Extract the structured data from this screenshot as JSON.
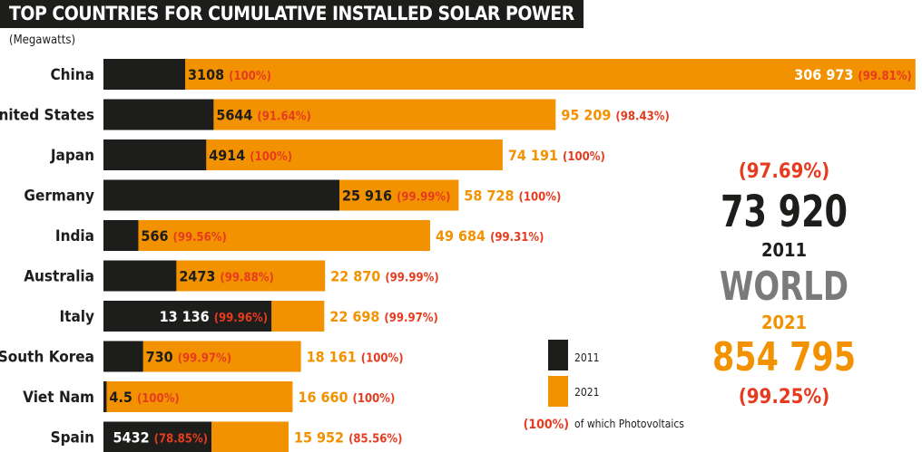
{
  "chart_data": {
    "type": "bar",
    "orientation": "horizontal",
    "title": "TOP COUNTRIES FOR CUMULATIVE INSTALLED SOLAR POWER",
    "unit": "(Megawatts)",
    "scale": "sqrt",
    "categories": [
      "China",
      "United States",
      "Japan",
      "Germany",
      "India",
      "Australia",
      "Italy",
      "South Korea",
      "Viet Nam",
      "Spain"
    ],
    "series": [
      {
        "name": "2011",
        "color": "#1d1d1b",
        "values": [
          3108,
          5644,
          4914,
          25916,
          566,
          2473,
          13136,
          730,
          4.5,
          5432
        ],
        "labels": [
          "3108",
          "5644",
          "4914",
          "25 916",
          "566",
          "2473",
          "13 136",
          "730",
          "4.5",
          "5432"
        ],
        "pv_share": [
          "(100%)",
          "(91.64%)",
          "(100%)",
          "(99.99%)",
          "(99.56%)",
          "(99.88%)",
          "(99.96%)",
          "(99.97%)",
          "(100%)",
          "(78.85%)"
        ]
      },
      {
        "name": "2021",
        "color": "#f39200",
        "values": [
          306973,
          95209,
          74191,
          58728,
          49684,
          22870,
          22698,
          18161,
          16660,
          15952
        ],
        "labels": [
          "306 973",
          "95 209",
          "74 191",
          "58 728",
          "49 684",
          "22 870",
          "22 698",
          "18 161",
          "16 660",
          "15 952"
        ],
        "pv_share": [
          "(99.81%)",
          "(98.43%)",
          "(100%)",
          "(100%)",
          "(99.31%)",
          "(99.99%)",
          "(99.97%)",
          "(100%)",
          "(100%)",
          "(85.56%)"
        ]
      }
    ],
    "legend": {
      "items": [
        "2011",
        "2021"
      ],
      "pv_sample": "(100%)",
      "pv_text": "of which Photovoltaics",
      "placement": "bottom-center"
    },
    "world": {
      "label": "WORLD",
      "year_2011": "2011",
      "value_2011": "73 920",
      "pv_2011": "(97.69%)",
      "year_2021": "2021",
      "value_2021": "854 795",
      "pv_2021": "(99.25%)"
    },
    "colors": {
      "dark": "#1d1d1b",
      "orange": "#f39200",
      "red": "#e63b1f",
      "grey": "#7a7a7a"
    }
  }
}
